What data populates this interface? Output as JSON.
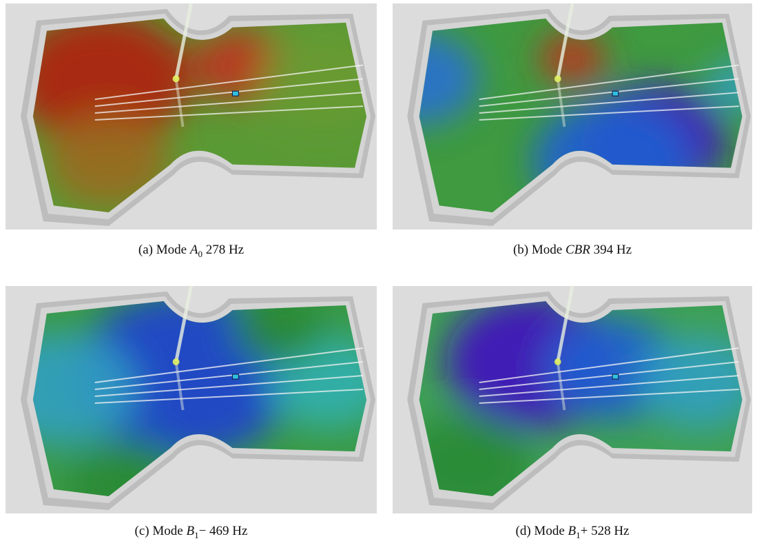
{
  "figure": {
    "panels": [
      {
        "label": "(a)",
        "prefix": "Mode",
        "symbol": "A",
        "subscript": "0",
        "suffix": "278 Hz"
      },
      {
        "label": "(b)",
        "prefix": "Mode",
        "symbol": "CBR",
        "suffix": "394 Hz"
      },
      {
        "label": "(c)",
        "prefix": "Mode",
        "symbol": "B",
        "subscript": "1",
        "sign": "−",
        "suffix": "469 Hz"
      },
      {
        "label": "(d)",
        "prefix": "Mode",
        "symbol": "B",
        "subscript": "1",
        "sign": "+",
        "suffix": "528 Hz"
      }
    ]
  }
}
